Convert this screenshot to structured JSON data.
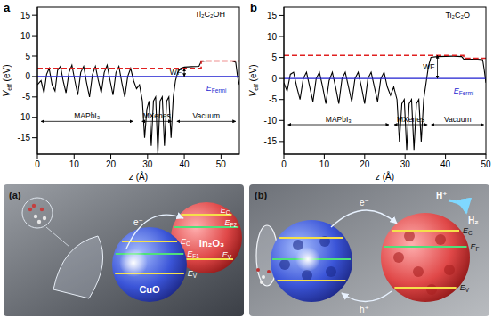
{
  "chart_data": [
    {
      "type": "line",
      "panel": "a",
      "title": "Ti₂C₂OH",
      "xlabel_var": "z",
      "xlabel_unit": "(Å)",
      "ylabel": "V",
      "ylabel_sub": "eff",
      "ylabel_unit": "(eV)",
      "xlim": [
        0,
        55
      ],
      "ylim": [
        -19,
        17
      ],
      "xticks": [
        0,
        10,
        20,
        30,
        40,
        50
      ],
      "yticks": [
        -15,
        -10,
        -5,
        0,
        5,
        10,
        15
      ],
      "regions": [
        "MAPbI₃",
        "MXenes",
        "Vacuum"
      ],
      "wf_label": "WF",
      "fermi_label": "E",
      "fermi_label_sub": "Fermi",
      "series": [
        {
          "color": "#000000",
          "line_style": "solid",
          "x": [
            0,
            1,
            1.8,
            2.5,
            3.2,
            4,
            4.8,
            5.5,
            6.3,
            7,
            7.8,
            8.6,
            9.4,
            10.2,
            11,
            11.8,
            12.6,
            13.4,
            14.2,
            15,
            15.8,
            16.6,
            17.4,
            18.2,
            19,
            19.8,
            20.6,
            21.4,
            22.2,
            23,
            23.8,
            24.6,
            25.4,
            26.2,
            27,
            27.8,
            28.6,
            29.2,
            29.8,
            30.4,
            31,
            31.6,
            32.2,
            32.8,
            33.4,
            34,
            34.6,
            35.2,
            35.8,
            36.4,
            37,
            37.6,
            38.2,
            39,
            40,
            42,
            44,
            44.6,
            46,
            50,
            53,
            54,
            54.5,
            55
          ],
          "values": [
            -2,
            -1,
            -4,
            0.5,
            2,
            -2,
            -3.5,
            1.5,
            2.5,
            -1,
            -4,
            1,
            2.8,
            -1,
            -4.5,
            1,
            2.5,
            -1.5,
            -5,
            0.5,
            2.5,
            -1,
            -4,
            1,
            2.8,
            -1,
            -4.5,
            1,
            2.5,
            -1.5,
            -5,
            0,
            2,
            -1,
            -3,
            -2,
            -6,
            -15,
            -8,
            -6,
            -17,
            -6,
            -5,
            -19,
            -6,
            -5,
            -17,
            -6,
            -5,
            -15,
            -5,
            -1,
            1,
            2,
            2.3,
            2.4,
            2.5,
            3.7,
            3.8,
            3.8,
            3.8,
            3.5,
            0,
            -2
          ]
        },
        {
          "color": "#e02020",
          "line_style": "dashed",
          "x": [
            0,
            44.6,
            44.6,
            55
          ],
          "values": [
            2,
            2,
            3.8,
            3.8
          ]
        },
        {
          "color": "#1f1fd0",
          "line_style": "solid",
          "x": [
            0,
            55
          ],
          "values": [
            0,
            0
          ]
        }
      ]
    },
    {
      "type": "line",
      "panel": "b",
      "title": "Ti₂C₂O",
      "xlabel_var": "z",
      "xlabel_unit": "(Å)",
      "ylabel": "V",
      "ylabel_sub": "eff",
      "ylabel_unit": "(eV)",
      "xlim": [
        0,
        50
      ],
      "ylim": [
        -18,
        17
      ],
      "xticks": [
        0,
        10,
        20,
        30,
        40,
        50
      ],
      "yticks": [
        -15,
        -10,
        -5,
        0,
        5,
        10,
        15
      ],
      "regions": [
        "MAPbI₃",
        "MXenes",
        "Vacuum"
      ],
      "wf_label": "WF",
      "fermi_label": "E",
      "fermi_label_sub": "Fermi",
      "series": [
        {
          "color": "#000000",
          "line_style": "solid",
          "x": [
            0,
            0.8,
            1.6,
            2.4,
            3.2,
            4,
            4.8,
            5.6,
            6.4,
            7.2,
            8,
            8.8,
            9.6,
            10.4,
            11.2,
            12,
            12.8,
            13.6,
            14.4,
            15.2,
            16,
            16.8,
            17.6,
            18.4,
            19.2,
            20,
            20.8,
            21.6,
            22.4,
            23.2,
            24,
            24.8,
            25.6,
            26.4,
            27.2,
            28,
            28.6,
            29.2,
            29.8,
            30.4,
            31,
            31.6,
            32.2,
            32.8,
            33.4,
            34,
            34.6,
            35.2,
            35.8,
            36.4,
            38,
            42,
            44,
            44.5,
            48,
            49.2,
            49.6,
            50
          ],
          "values": [
            -1,
            -3,
            1,
            1.5,
            -2,
            -5,
            0,
            1.5,
            -2,
            -5.5,
            0,
            1.5,
            -2,
            -6,
            -0.5,
            1.5,
            -2,
            -6,
            0,
            1.5,
            -2,
            -5.5,
            0,
            1.5,
            -2,
            -6,
            0,
            1.5,
            -2,
            -5.5,
            0,
            1.5,
            -2,
            -4,
            -2,
            -5,
            -15,
            -6,
            -5,
            -17,
            -6,
            -5,
            -17,
            -6,
            -5,
            -15,
            -5,
            -1,
            3,
            5,
            5.2,
            5.3,
            5.2,
            4.6,
            4.6,
            4.5,
            2,
            -1
          ]
        },
        {
          "color": "#e02020",
          "line_style": "dashed",
          "x": [
            0,
            44.5,
            44.5,
            50
          ],
          "values": [
            5.5,
            5.5,
            4.8,
            4.8
          ]
        },
        {
          "color": "#1f1fd0",
          "line_style": "solid",
          "x": [
            0,
            50
          ],
          "values": [
            0,
            0
          ]
        }
      ]
    }
  ],
  "schematic": [
    {
      "label": "(a)",
      "left_material": "CuO",
      "right_material": "In₂O₃",
      "left_levels": [
        {
          "text": "E",
          "sub": "C"
        },
        {
          "text": "E",
          "sub": "F1"
        },
        {
          "text": "E",
          "sub": "V"
        }
      ],
      "right_levels": [
        {
          "text": "E",
          "sub": "C"
        },
        {
          "text": "E",
          "sub": "F2"
        },
        {
          "text": "E",
          "sub": "V"
        }
      ],
      "electron": "e⁻"
    },
    {
      "label": "(b)",
      "levels": [
        {
          "text": "E",
          "sub": "C"
        },
        {
          "text": "E",
          "sub": "F"
        },
        {
          "text": "E",
          "sub": "V"
        }
      ],
      "electron": "e⁻",
      "hole": "h⁺",
      "proton": "H⁺",
      "product": "H₂"
    }
  ]
}
